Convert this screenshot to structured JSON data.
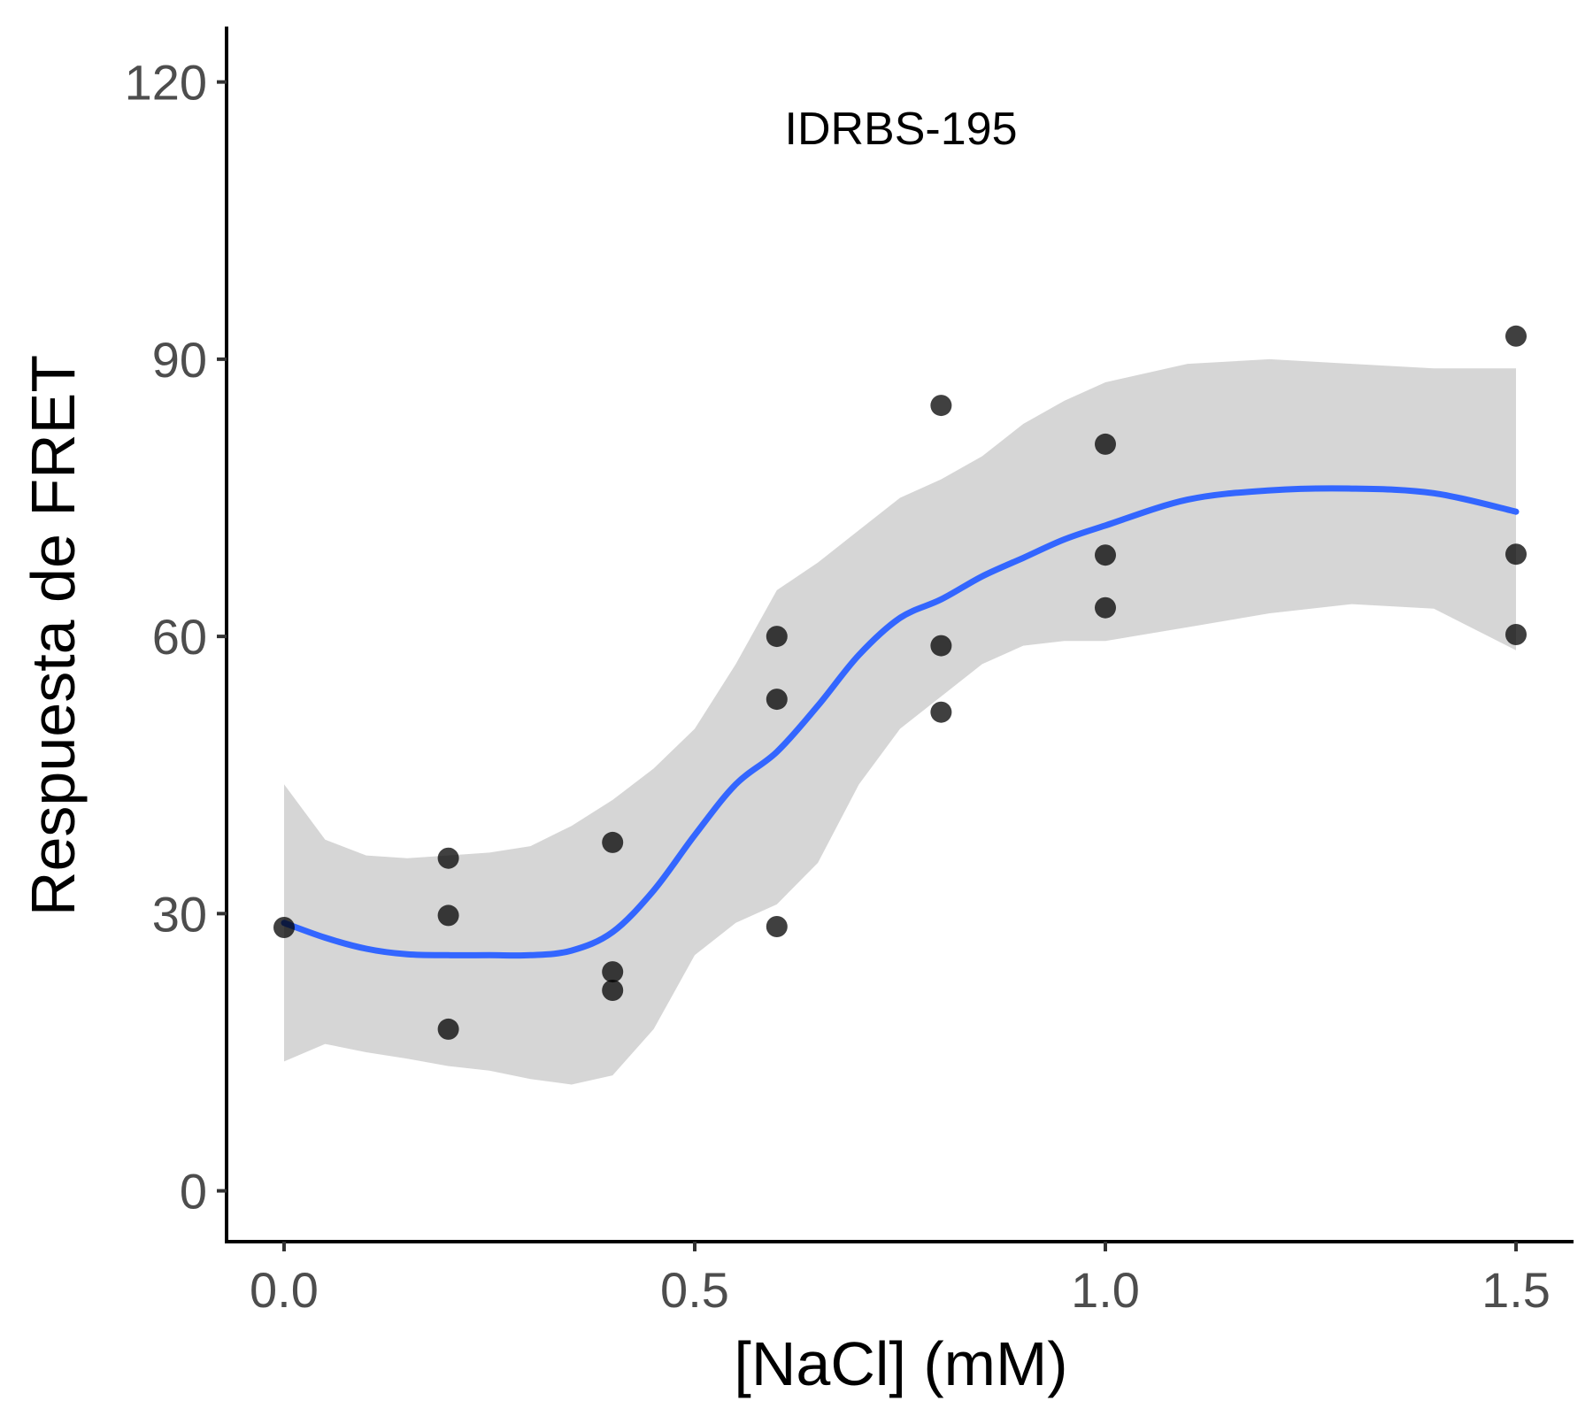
{
  "chart_data": {
    "type": "scatter",
    "annotation": "IDRBS-195",
    "xlabel": "[NaCl] (mM)",
    "ylabel": "Respuesta de FRET",
    "xlim": [
      -0.07,
      1.57
    ],
    "ylim": [
      -5.5,
      126
    ],
    "x_ticks": [
      0.0,
      0.5,
      1.0,
      1.5
    ],
    "x_tick_labels": [
      "0.0",
      "0.5",
      "1.0",
      "1.5"
    ],
    "y_ticks": [
      0,
      30,
      60,
      90,
      120
    ],
    "y_tick_labels": [
      "0",
      "30",
      "60",
      "90",
      "120"
    ],
    "grid": false,
    "legend": "none",
    "colors": {
      "points": "#000000",
      "smooth_line": "#3366FF",
      "ribbon": "#d6d6d6",
      "axis": "#000000"
    },
    "points": [
      {
        "x": 0.0,
        "y": 28.5
      },
      {
        "x": 0.2,
        "y": 36.0
      },
      {
        "x": 0.2,
        "y": 29.8
      },
      {
        "x": 0.2,
        "y": 17.5
      },
      {
        "x": 0.4,
        "y": 37.7
      },
      {
        "x": 0.4,
        "y": 23.7
      },
      {
        "x": 0.4,
        "y": 21.7
      },
      {
        "x": 0.6,
        "y": 60.0
      },
      {
        "x": 0.6,
        "y": 53.2
      },
      {
        "x": 0.6,
        "y": 28.6
      },
      {
        "x": 0.8,
        "y": 85.0
      },
      {
        "x": 0.8,
        "y": 59.0
      },
      {
        "x": 0.8,
        "y": 51.8
      },
      {
        "x": 1.0,
        "y": 80.8
      },
      {
        "x": 1.0,
        "y": 68.8
      },
      {
        "x": 1.0,
        "y": 63.1
      },
      {
        "x": 1.5,
        "y": 92.5
      },
      {
        "x": 1.5,
        "y": 68.9
      },
      {
        "x": 1.5,
        "y": 60.2
      }
    ],
    "smooth": {
      "x": [
        0.0,
        0.05,
        0.1,
        0.15,
        0.2,
        0.25,
        0.3,
        0.35,
        0.4,
        0.45,
        0.5,
        0.55,
        0.6,
        0.65,
        0.7,
        0.75,
        0.8,
        0.85,
        0.9,
        0.95,
        1.0,
        1.1,
        1.2,
        1.3,
        1.4,
        1.5
      ],
      "y": [
        29.0,
        27.4,
        26.2,
        25.6,
        25.5,
        25.5,
        25.5,
        26.0,
        28.0,
        32.5,
        38.5,
        44.0,
        47.5,
        52.5,
        58.0,
        62.0,
        64.0,
        66.5,
        68.5,
        70.5,
        72.0,
        74.8,
        75.8,
        76.0,
        75.5,
        73.5
      ],
      "upper": [
        44.0,
        38.0,
        36.3,
        36.0,
        36.3,
        36.6,
        37.3,
        39.5,
        42.3,
        45.7,
        50.0,
        57.0,
        65.0,
        68.0,
        71.5,
        75.0,
        77.0,
        79.5,
        83.0,
        85.5,
        87.5,
        89.5,
        90.0,
        89.5,
        89.0,
        89.0
      ],
      "lower": [
        14.0,
        15.9,
        15.0,
        14.3,
        13.5,
        13.0,
        12.1,
        11.5,
        12.5,
        17.5,
        25.5,
        29.0,
        31.0,
        35.5,
        44.0,
        50.0,
        53.5,
        57.0,
        59.0,
        59.5,
        59.5,
        61.0,
        62.5,
        63.5,
        63.0,
        58.5
      ]
    }
  }
}
